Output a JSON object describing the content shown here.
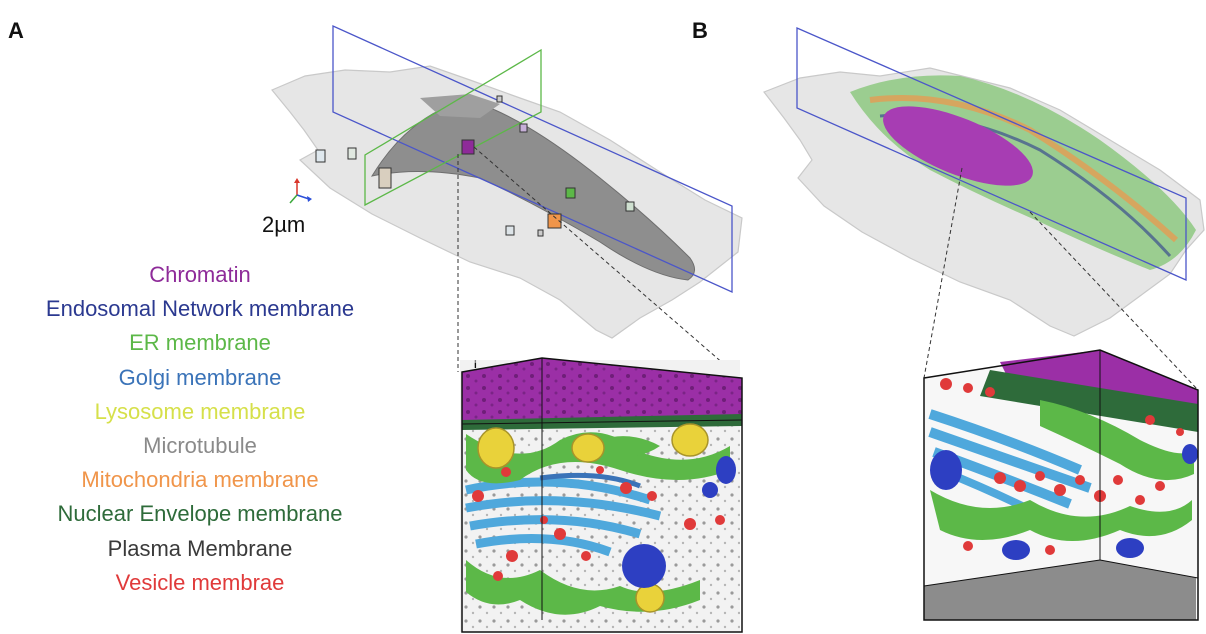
{
  "panels": {
    "a": "A",
    "b": "B"
  },
  "scale_bar": "2µm",
  "inset_label": "i",
  "legend": [
    {
      "label": "Chromatin",
      "color": "#8e2b99"
    },
    {
      "label": "Endosomal Network membrane",
      "color": "#2b3990"
    },
    {
      "label": "ER membrane",
      "color": "#5cb848"
    },
    {
      "label": "Golgi membrane",
      "color": "#3a73b8"
    },
    {
      "label": "Lysosome membrane",
      "color": "#d6e04a"
    },
    {
      "label": "Microtubule",
      "color": "#8a8a8a"
    },
    {
      "label": "Mitochondria membrane",
      "color": "#f0954a"
    },
    {
      "label": "Nuclear Envelope membrane",
      "color": "#2e6b3a"
    },
    {
      "label": "Plasma Membrane",
      "color": "#3a3a3a"
    },
    {
      "label": "Vesicle membrae",
      "color": "#e03a3a"
    }
  ]
}
